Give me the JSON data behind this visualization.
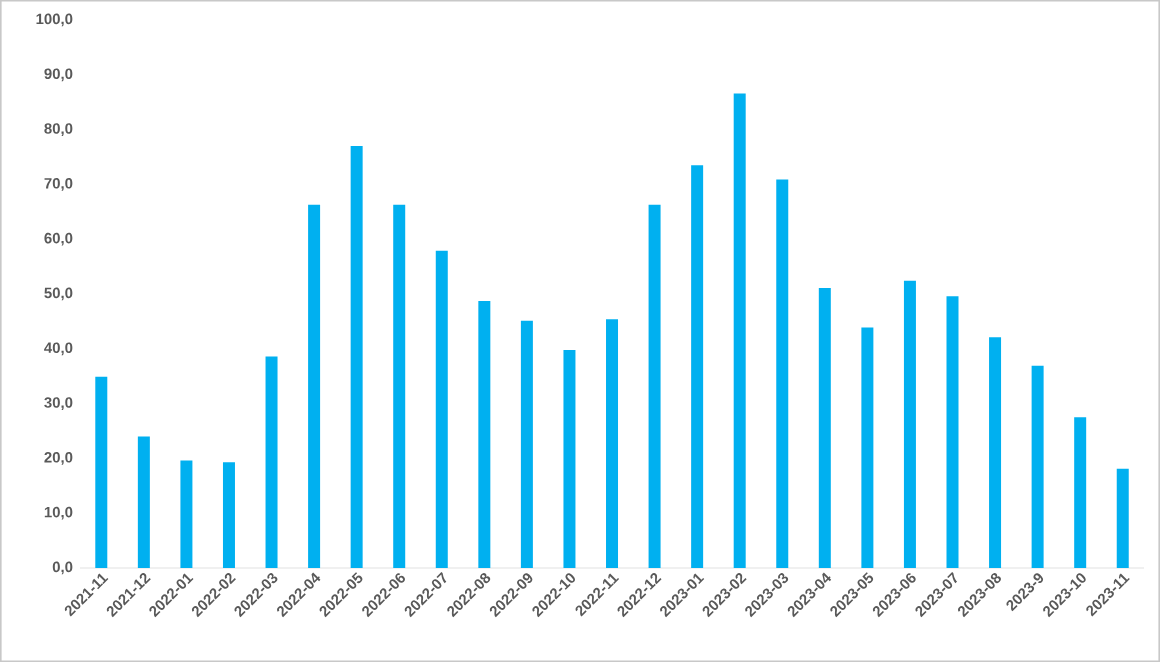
{
  "chart_data": {
    "type": "bar",
    "categories": [
      "2021-11",
      "2021-12",
      "2022-01",
      "2022-02",
      "2022-03",
      "2022-04",
      "2022-05",
      "2022-06",
      "2022-07",
      "2022-08",
      "2022-09",
      "2022-10",
      "2022-11",
      "2022-12",
      "2023-01",
      "2023-02",
      "2023-03",
      "2023-04",
      "2023-05",
      "2023-06",
      "2023-07",
      "2023-08",
      "2023-9",
      "2023-10",
      "2023-11"
    ],
    "values": [
      34.9,
      24.0,
      19.6,
      19.3,
      38.6,
      66.3,
      77.0,
      66.3,
      57.9,
      48.7,
      45.1,
      39.8,
      45.4,
      66.3,
      73.5,
      86.6,
      70.9,
      51.1,
      43.9,
      52.4,
      49.6,
      42.1,
      36.9,
      27.5,
      18.1
    ],
    "color": "#00b0f0",
    "ylim": [
      0,
      100
    ],
    "yticks": [
      {
        "value": 0,
        "label": "0,0"
      },
      {
        "value": 10,
        "label": "10,0"
      },
      {
        "value": 20,
        "label": "20,0"
      },
      {
        "value": 30,
        "label": "30,0"
      },
      {
        "value": 40,
        "label": "40,0"
      },
      {
        "value": 50,
        "label": "50,0"
      },
      {
        "value": 60,
        "label": "60,0"
      },
      {
        "value": 70,
        "label": "70,0"
      },
      {
        "value": 80,
        "label": "80,0"
      },
      {
        "value": 90,
        "label": "90,0"
      },
      {
        "value": 100,
        "label": "100,0"
      }
    ],
    "tick_labels": "xy"
  }
}
